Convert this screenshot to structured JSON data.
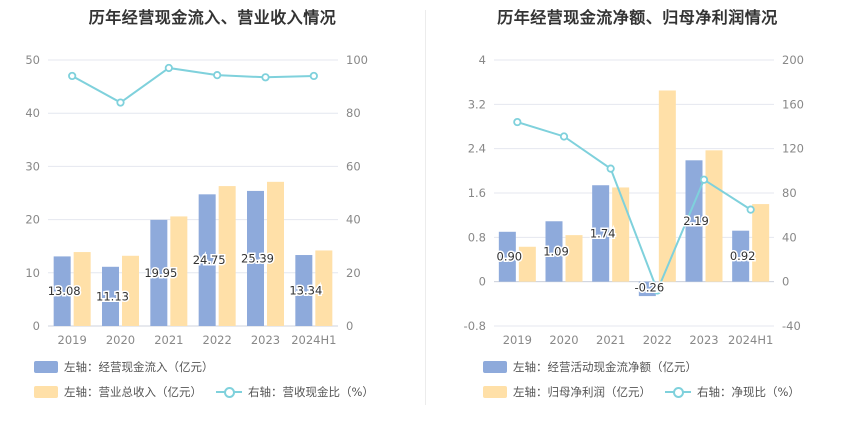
{
  "colors": {
    "bar_primary": "#8eaadb",
    "bar_secondary": "#ffe0a8",
    "line": "#7fd1dc",
    "grid": "#e4e7ef",
    "axis_text": "#888888"
  },
  "left": {
    "title": "历年经营现金流入、营业收入情况",
    "legend": {
      "bar1": "左轴：经营现金流入（亿元）",
      "bar2": "左轴：营业总收入（亿元）",
      "line": "右轴：营收现金比（%）"
    }
  },
  "right": {
    "title": "历年经营现金流净额、归母净利润情况",
    "legend": {
      "bar1": "左轴：经营活动现金流净额（亿元）",
      "bar2": "左轴：归母净利润（亿元）",
      "line": "右轴：净现比（%）"
    }
  },
  "chart_data": [
    {
      "type": "bar",
      "categories": [
        "2019",
        "2020",
        "2021",
        "2022",
        "2023",
        "2024H1"
      ],
      "series": [
        {
          "name": "左轴：经营现金流入（亿元）",
          "axis": "left",
          "kind": "bar",
          "values": [
            13.08,
            11.13,
            19.95,
            24.75,
            25.39,
            13.34
          ],
          "labels": [
            "13.08",
            "11.13",
            "19.95",
            "24.75",
            "25.39",
            "13.34"
          ]
        },
        {
          "name": "左轴：营业总收入（亿元）",
          "axis": "left",
          "kind": "bar",
          "values": [
            13.9,
            13.2,
            20.6,
            26.3,
            27.1,
            14.2
          ]
        },
        {
          "name": "右轴：营收现金比（%）",
          "axis": "right",
          "kind": "line",
          "values": [
            94,
            84,
            97,
            94.3,
            93.5,
            94
          ]
        }
      ],
      "y_left": {
        "ylim": [
          0,
          50
        ],
        "ticks": [
          "0",
          "10",
          "20",
          "30",
          "40",
          "50"
        ]
      },
      "y_right": {
        "ylim": [
          0,
          100
        ],
        "ticks": [
          "0",
          "20",
          "40",
          "60",
          "80",
          "100"
        ]
      },
      "grid": true,
      "legend": "bottom"
    },
    {
      "type": "bar",
      "categories": [
        "2019",
        "2020",
        "2021",
        "2022",
        "2023",
        "2024H1"
      ],
      "series": [
        {
          "name": "左轴：经营活动现金流净额（亿元）",
          "axis": "left",
          "kind": "bar",
          "values": [
            0.9,
            1.09,
            1.74,
            -0.26,
            2.19,
            0.92
          ],
          "labels": [
            "0.90",
            "1.09",
            "1.74",
            "-0.26",
            "2.19",
            "0.92"
          ]
        },
        {
          "name": "左轴：归母净利润（亿元）",
          "axis": "left",
          "kind": "bar",
          "values": [
            0.63,
            0.84,
            1.7,
            3.45,
            2.37,
            1.4
          ]
        },
        {
          "name": "右轴：净现比（%）",
          "axis": "right",
          "kind": "line",
          "values": [
            144,
            131,
            102,
            -8,
            92,
            65
          ]
        }
      ],
      "y_left": {
        "ylim": [
          -0.8,
          4
        ],
        "ticks": [
          "-0.8",
          "0",
          "0.8",
          "1.6",
          "2.4",
          "3.2",
          "4"
        ]
      },
      "y_right": {
        "ylim": [
          -40,
          200
        ],
        "ticks": [
          "-40",
          "0",
          "40",
          "80",
          "120",
          "160",
          "200"
        ]
      },
      "grid": true,
      "legend": "bottom"
    }
  ]
}
